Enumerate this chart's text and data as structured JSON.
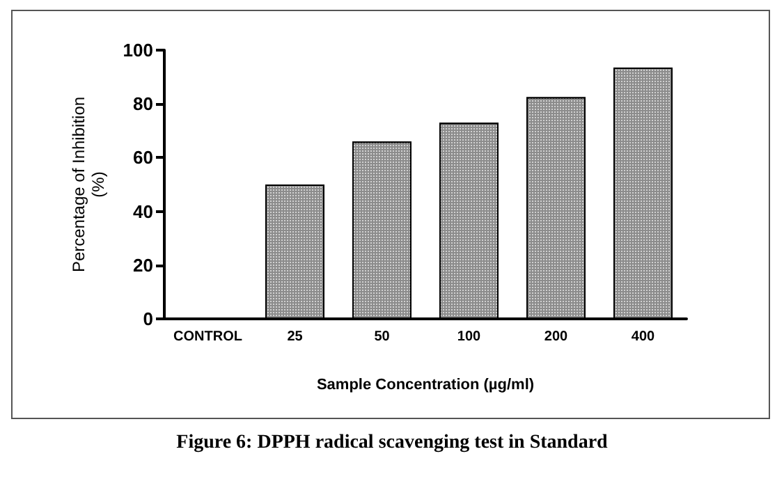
{
  "chart_data": {
    "type": "bar",
    "title": "Figure 6: DPPH radical scavenging test in Standard",
    "xlabel": "Sample Concentration (µg/ml)",
    "ylabel": "Percentage of Inhibition\n(%)",
    "categories": [
      "CONTROL",
      "25",
      "50",
      "100",
      "200",
      "400"
    ],
    "values": [
      0,
      50,
      66,
      73,
      82.5,
      93.5
    ],
    "color": "#8c8c8c",
    "ylim": [
      0,
      100
    ],
    "yticks": [
      0,
      20,
      40,
      60,
      80,
      100
    ],
    "grid": false
  }
}
